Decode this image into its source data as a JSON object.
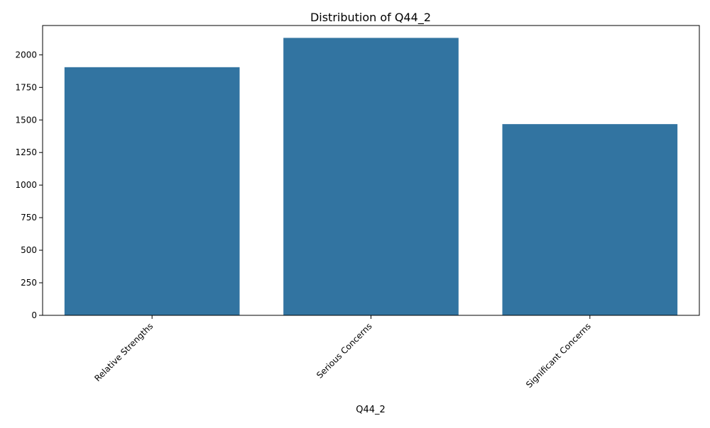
{
  "chart_data": {
    "type": "bar",
    "title": "Distribution of Q44_2",
    "xlabel": "Q44_2",
    "ylabel": "",
    "categories": [
      "Relative Strengths",
      "Serious Concerns",
      "Significant Concerns"
    ],
    "values": [
      1905,
      2130,
      1468
    ],
    "ylim": [
      0,
      2225
    ],
    "yticks": [
      0,
      250,
      500,
      750,
      1000,
      1250,
      1500,
      1750,
      2000
    ],
    "bar_color": "#3274a1",
    "grid": false,
    "legend": "none"
  }
}
